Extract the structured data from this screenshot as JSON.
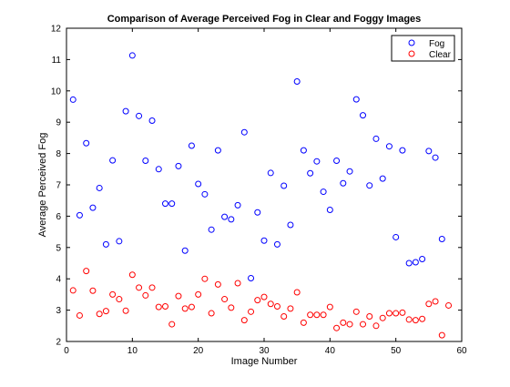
{
  "chart_data": {
    "type": "scatter",
    "title": "Comparison of Average Perceived Fog in Clear and Foggy Images",
    "xlabel": "Image Number",
    "ylabel": "Average Perceived Fog",
    "xlim": [
      0,
      60
    ],
    "ylim": [
      2,
      12
    ],
    "xticks": [
      "0",
      "10",
      "20",
      "30",
      "40",
      "50",
      "60"
    ],
    "yticks": [
      "2",
      "3",
      "4",
      "5",
      "6",
      "7",
      "8",
      "9",
      "10",
      "11",
      "12"
    ],
    "grid": false,
    "legend_position": "top-right",
    "marker": "open-circle",
    "x": [
      1,
      2,
      3,
      4,
      5,
      6,
      7,
      8,
      9,
      10,
      11,
      12,
      13,
      14,
      15,
      16,
      17,
      18,
      19,
      20,
      21,
      22,
      23,
      24,
      25,
      26,
      27,
      28,
      29,
      30,
      31,
      32,
      33,
      34,
      35,
      36,
      37,
      38,
      39,
      40,
      41,
      42,
      43,
      44,
      45,
      46,
      47,
      48,
      49,
      50,
      51,
      52,
      53,
      54,
      55,
      56,
      57,
      58
    ],
    "series": [
      {
        "name": "Fog",
        "color": "#0000ff",
        "values": [
          9.72,
          6.03,
          8.33,
          6.27,
          6.9,
          5.1,
          7.78,
          5.2,
          9.35,
          11.13,
          9.2,
          7.77,
          9.05,
          7.5,
          6.4,
          6.4,
          7.6,
          4.9,
          8.25,
          7.03,
          6.7,
          5.57,
          8.1,
          5.98,
          5.9,
          6.35,
          8.68,
          4.02,
          6.12,
          5.22,
          7.38,
          5.1,
          6.97,
          5.72,
          10.3,
          8.1,
          7.37,
          7.75,
          6.78,
          6.2,
          7.77,
          7.05,
          7.43,
          9.73,
          9.22,
          6.98,
          8.47,
          7.2,
          8.23,
          5.33,
          8.1,
          4.5,
          4.53,
          4.63,
          8.08,
          7.87,
          5.27,
          null
        ]
      },
      {
        "name": "Clear",
        "color": "#ff0000",
        "values": [
          3.63,
          2.83,
          4.25,
          3.62,
          2.88,
          2.97,
          3.5,
          3.35,
          2.98,
          4.13,
          3.72,
          3.47,
          3.72,
          3.1,
          3.12,
          2.55,
          3.45,
          3.05,
          3.1,
          3.5,
          4.0,
          2.9,
          3.82,
          3.35,
          3.08,
          3.86,
          2.68,
          2.95,
          3.32,
          3.42,
          3.2,
          3.12,
          2.8,
          3.05,
          3.57,
          2.6,
          2.85,
          2.85,
          2.85,
          3.1,
          2.43,
          2.6,
          2.55,
          2.95,
          2.55,
          2.8,
          2.5,
          2.75,
          2.9,
          2.9,
          2.92,
          2.7,
          2.68,
          2.72,
          3.2,
          3.28,
          2.2,
          3.15
        ]
      }
    ]
  }
}
